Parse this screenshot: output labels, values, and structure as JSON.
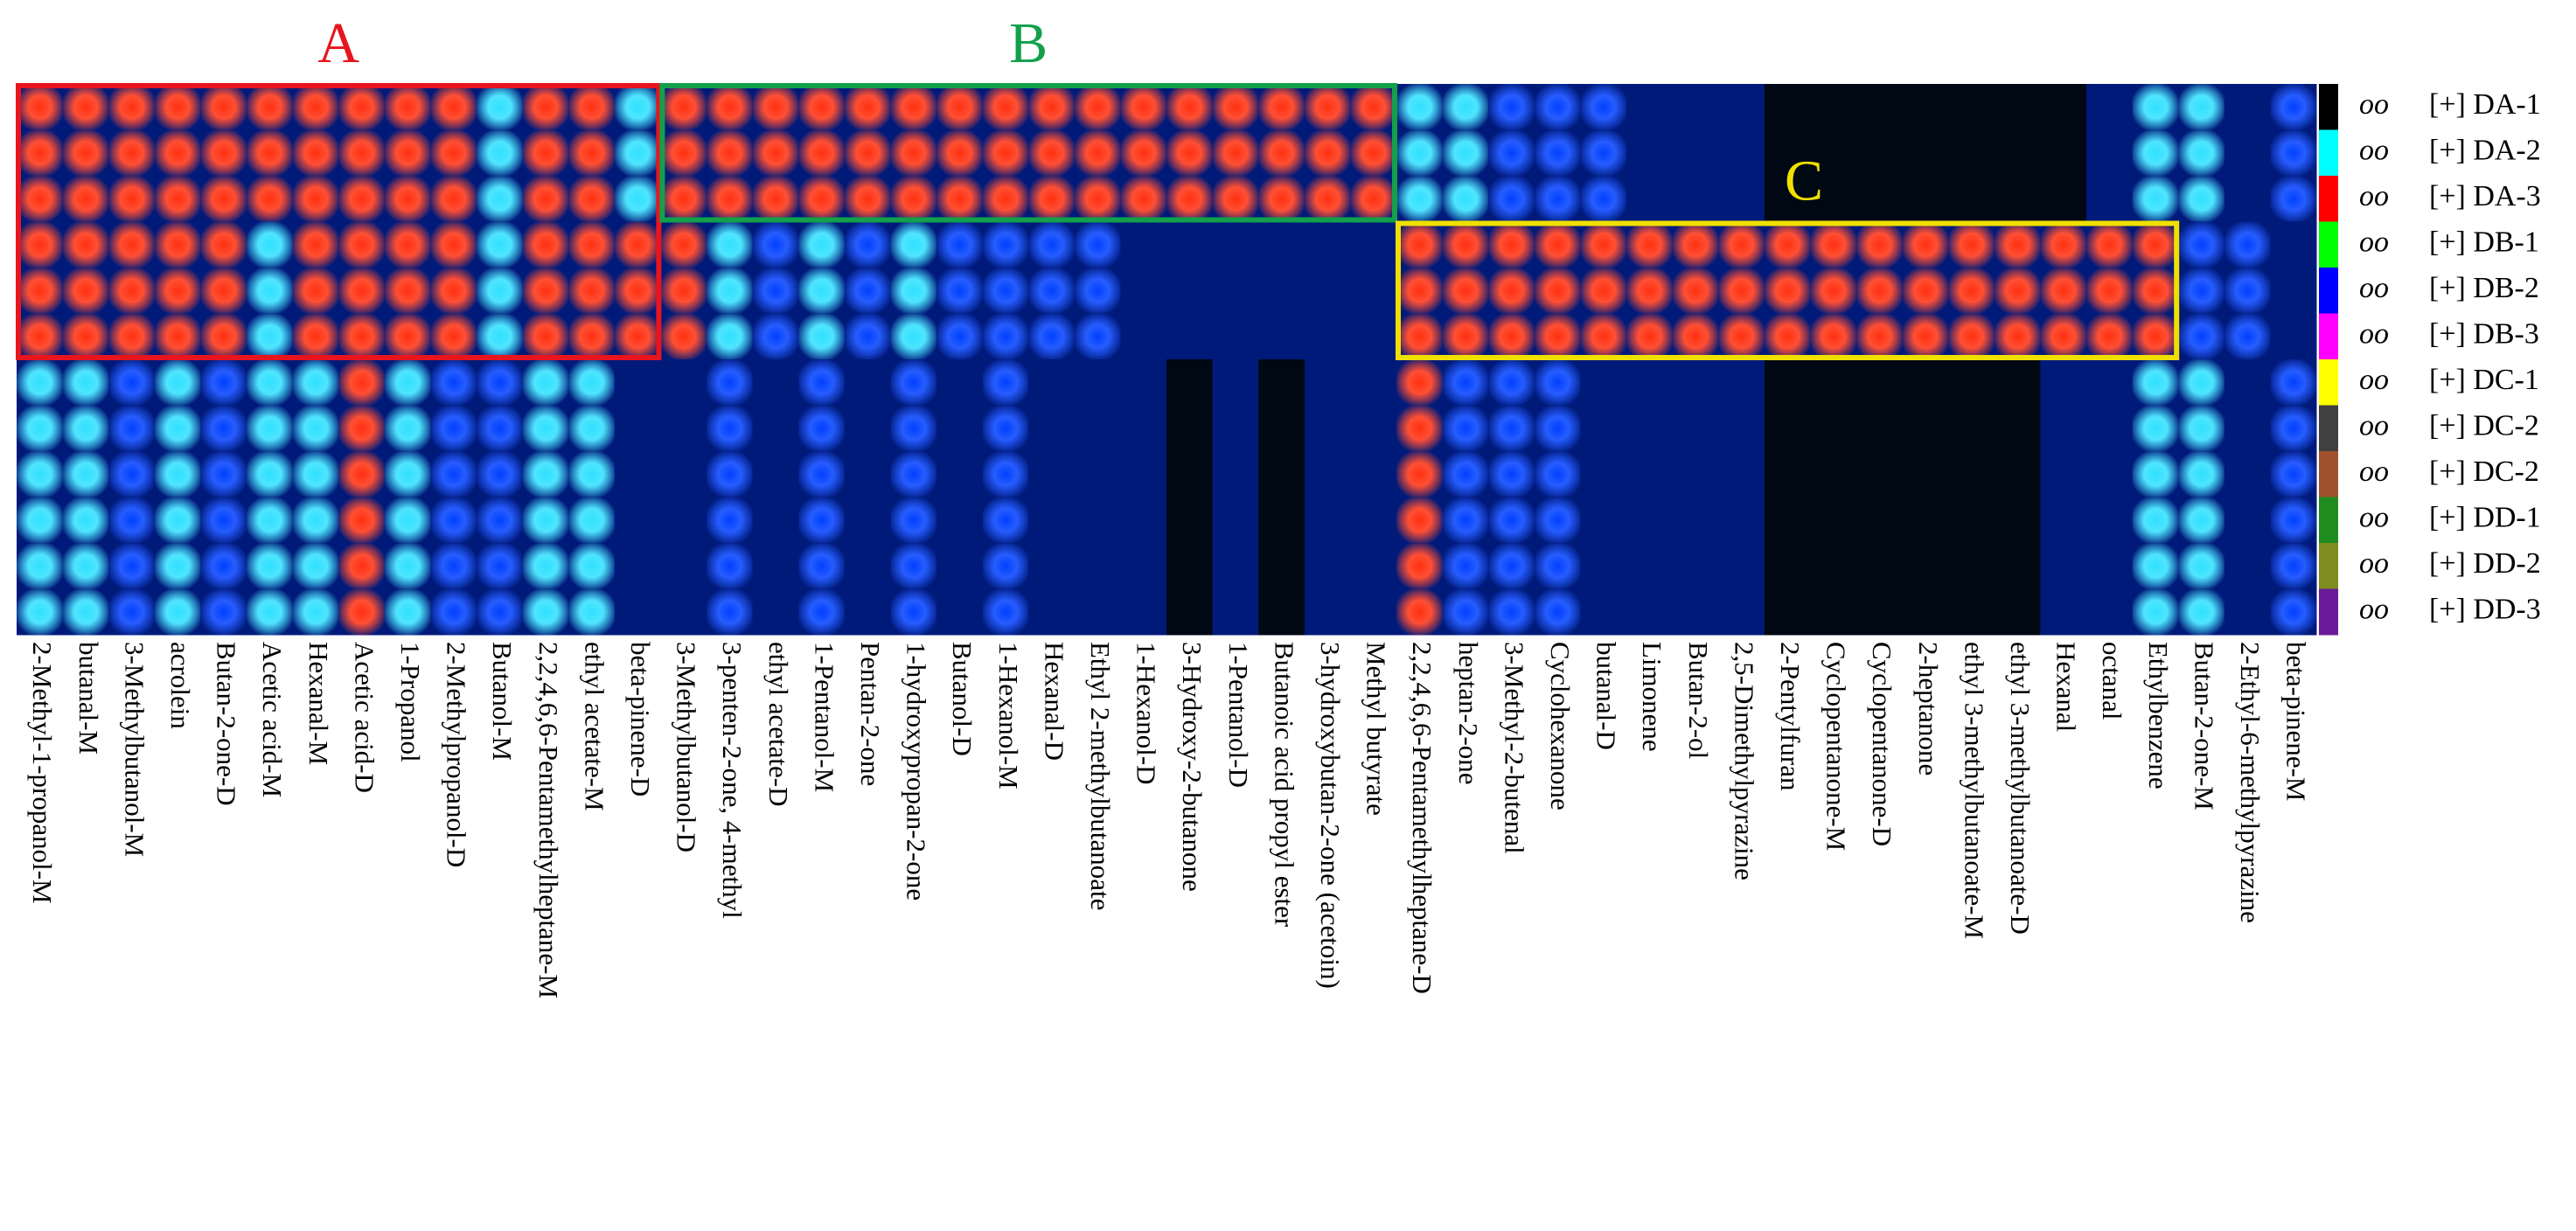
{
  "chart_data": {
    "type": "heatmap",
    "categories": [
      "2-Methyl-1-propanol-M",
      "butanal-M",
      "3-Methylbutanol-M",
      "acrolein",
      "Butan-2-one-D",
      "Acetic acid-M",
      "Hexanal-M",
      "Acetic acid-D",
      "1-Propanol",
      "2-Methylpropanol-D",
      "Butanol-M",
      "2,2,4,6,6-Pentamethylheptane-M",
      "ethyl acetate-M",
      "beta-pinene-D",
      "3-Methylbutanol-D",
      "3-penten-2-one, 4-methyl",
      "ethyl acetate-D",
      "1-Pentanol-M",
      "Pentan-2-one",
      "1-hydroxypropan-2-one",
      "Butanol-D",
      "1-Hexanol-M",
      "Hexanal-D",
      "Ethyl 2-methylbutanoate",
      "1-Hexanol-D",
      "3-Hydroxy-2-butanone",
      "1-Pentanol-D",
      "Butanoic acid propyl ester",
      "3-hydroxybutan-2-one (acetoin)",
      "Methyl butyrate",
      "2,2,4,6,6-Pentamethylheptane-D",
      "heptan-2-one",
      "3-Methyl-2-butenal",
      "Cyclohexanone",
      "butanal-D",
      "Limonene",
      "Butan-2-ol",
      "2,5-Dimethylpyrazine",
      "2-Pentylfuran",
      "Cyclopentanone-M",
      "Cyclopentanone-D",
      "2-heptanone",
      "ethyl 3-methylbutanoate-M",
      "ethyl 3-methylbutanoate-D",
      "Hexanal",
      "octanal",
      "Ethylbenzene",
      "Butan-2-one-M",
      "2-Ethyl-6-methylpyrazine",
      "beta-pinene-M"
    ],
    "legend_symbol": "oo",
    "series": [
      {
        "name": "[+] DA-1",
        "color": "#000000",
        "values": [
          4,
          4,
          4,
          4,
          4,
          4,
          4,
          4,
          4,
          4,
          3,
          4,
          4,
          3,
          4,
          4,
          4,
          4,
          4,
          4,
          4,
          4,
          4,
          4,
          4,
          4,
          4,
          4,
          4,
          4,
          3,
          3,
          2,
          2,
          2,
          1,
          1,
          1,
          0,
          0,
          0,
          0,
          0,
          0,
          0,
          1,
          3,
          3,
          1,
          2
        ]
      },
      {
        "name": "[+] DA-2",
        "color": "#00ffff",
        "values": [
          4,
          4,
          4,
          4,
          4,
          4,
          4,
          4,
          4,
          4,
          3,
          4,
          4,
          3,
          4,
          4,
          4,
          4,
          4,
          4,
          4,
          4,
          4,
          4,
          4,
          4,
          4,
          4,
          4,
          4,
          3,
          3,
          2,
          2,
          2,
          1,
          1,
          1,
          0,
          0,
          0,
          0,
          0,
          0,
          0,
          1,
          3,
          3,
          1,
          2
        ]
      },
      {
        "name": "[+] DA-3",
        "color": "#ff0000",
        "values": [
          4,
          4,
          4,
          4,
          4,
          4,
          4,
          4,
          4,
          4,
          3,
          4,
          4,
          3,
          4,
          4,
          4,
          4,
          4,
          4,
          4,
          4,
          4,
          4,
          4,
          4,
          4,
          4,
          4,
          4,
          3,
          3,
          2,
          2,
          2,
          1,
          1,
          1,
          0,
          0,
          0,
          0,
          0,
          0,
          0,
          1,
          3,
          3,
          1,
          2
        ]
      },
      {
        "name": "[+] DB-1",
        "color": "#00ff00",
        "values": [
          4,
          4,
          4,
          4,
          4,
          3,
          4,
          4,
          4,
          4,
          3,
          4,
          4,
          4,
          4,
          3,
          2,
          3,
          2,
          3,
          2,
          2,
          2,
          2,
          1,
          1,
          1,
          1,
          1,
          1,
          4,
          4,
          4,
          4,
          4,
          4,
          4,
          4,
          4,
          4,
          4,
          4,
          4,
          4,
          4,
          4,
          4,
          2,
          2,
          1
        ]
      },
      {
        "name": "[+] DB-2",
        "color": "#0000ff",
        "values": [
          4,
          4,
          4,
          4,
          4,
          3,
          4,
          4,
          4,
          4,
          3,
          4,
          4,
          4,
          4,
          3,
          2,
          3,
          2,
          3,
          2,
          2,
          2,
          2,
          1,
          1,
          1,
          1,
          1,
          1,
          4,
          4,
          4,
          4,
          4,
          4,
          4,
          4,
          4,
          4,
          4,
          4,
          4,
          4,
          4,
          4,
          4,
          2,
          2,
          1
        ]
      },
      {
        "name": "[+] DB-3",
        "color": "#ff00ff",
        "values": [
          4,
          4,
          4,
          4,
          4,
          3,
          4,
          4,
          4,
          4,
          3,
          4,
          4,
          4,
          4,
          3,
          2,
          3,
          2,
          3,
          2,
          2,
          2,
          2,
          1,
          1,
          1,
          1,
          1,
          1,
          4,
          4,
          4,
          4,
          4,
          4,
          4,
          4,
          4,
          4,
          4,
          4,
          4,
          4,
          4,
          4,
          4,
          2,
          2,
          1
        ]
      },
      {
        "name": "[+] DC-1",
        "color": "#ffff00",
        "values": [
          3,
          3,
          2,
          3,
          2,
          3,
          3,
          4,
          3,
          2,
          2,
          3,
          3,
          1,
          1,
          2,
          1,
          2,
          1,
          2,
          1,
          2,
          1,
          1,
          1,
          0,
          1,
          0,
          1,
          1,
          4,
          2,
          2,
          2,
          1,
          1,
          1,
          1,
          0,
          0,
          0,
          0,
          0,
          0,
          1,
          1,
          3,
          3,
          1,
          2
        ]
      },
      {
        "name": "[+] DC-2",
        "color": "#404040",
        "values": [
          3,
          3,
          2,
          3,
          2,
          3,
          3,
          4,
          3,
          2,
          2,
          3,
          3,
          1,
          1,
          2,
          1,
          2,
          1,
          2,
          1,
          2,
          1,
          1,
          1,
          0,
          1,
          0,
          1,
          1,
          4,
          2,
          2,
          2,
          1,
          1,
          1,
          1,
          0,
          0,
          0,
          0,
          0,
          0,
          1,
          1,
          3,
          3,
          1,
          2
        ]
      },
      {
        "name": "[+] DC-2",
        "color": "#a0522d",
        "values": [
          3,
          3,
          2,
          3,
          2,
          3,
          3,
          4,
          3,
          2,
          2,
          3,
          3,
          1,
          1,
          2,
          1,
          2,
          1,
          2,
          1,
          2,
          1,
          1,
          1,
          0,
          1,
          0,
          1,
          1,
          4,
          2,
          2,
          2,
          1,
          1,
          1,
          1,
          0,
          0,
          0,
          0,
          0,
          0,
          1,
          1,
          3,
          3,
          1,
          2
        ]
      },
      {
        "name": "[+] DD-1",
        "color": "#1e8c1e",
        "values": [
          3,
          3,
          2,
          3,
          2,
          3,
          3,
          4,
          3,
          2,
          2,
          3,
          3,
          1,
          1,
          2,
          1,
          2,
          1,
          2,
          1,
          2,
          1,
          1,
          1,
          0,
          1,
          0,
          1,
          1,
          4,
          2,
          2,
          2,
          1,
          1,
          1,
          1,
          0,
          0,
          0,
          0,
          0,
          0,
          1,
          1,
          3,
          3,
          1,
          2
        ]
      },
      {
        "name": "[+] DD-2",
        "color": "#7f8c1e",
        "values": [
          3,
          3,
          2,
          3,
          2,
          3,
          3,
          4,
          3,
          2,
          2,
          3,
          3,
          1,
          1,
          2,
          1,
          2,
          1,
          2,
          1,
          2,
          1,
          1,
          1,
          0,
          1,
          0,
          1,
          1,
          4,
          2,
          2,
          2,
          1,
          1,
          1,
          1,
          0,
          0,
          0,
          0,
          0,
          0,
          1,
          1,
          3,
          3,
          1,
          2
        ]
      },
      {
        "name": "[+] DD-3",
        "color": "#6a1b9a",
        "values": [
          3,
          3,
          2,
          3,
          2,
          3,
          3,
          4,
          3,
          2,
          2,
          3,
          3,
          1,
          1,
          2,
          1,
          2,
          1,
          2,
          1,
          2,
          1,
          1,
          1,
          0,
          1,
          0,
          1,
          1,
          4,
          2,
          2,
          2,
          1,
          1,
          1,
          1,
          0,
          0,
          0,
          0,
          0,
          0,
          1,
          1,
          3,
          3,
          1,
          2
        ]
      }
    ],
    "colormap": [
      "#000814",
      "#001a7a",
      "#0040ff",
      "#30e0ff",
      "#ff3010"
    ],
    "regions": [
      {
        "label": "A",
        "color": "#e8141e"
      },
      {
        "label": "B",
        "color": "#12a04a"
      },
      {
        "label": "C",
        "color": "#f0e000"
      }
    ]
  }
}
